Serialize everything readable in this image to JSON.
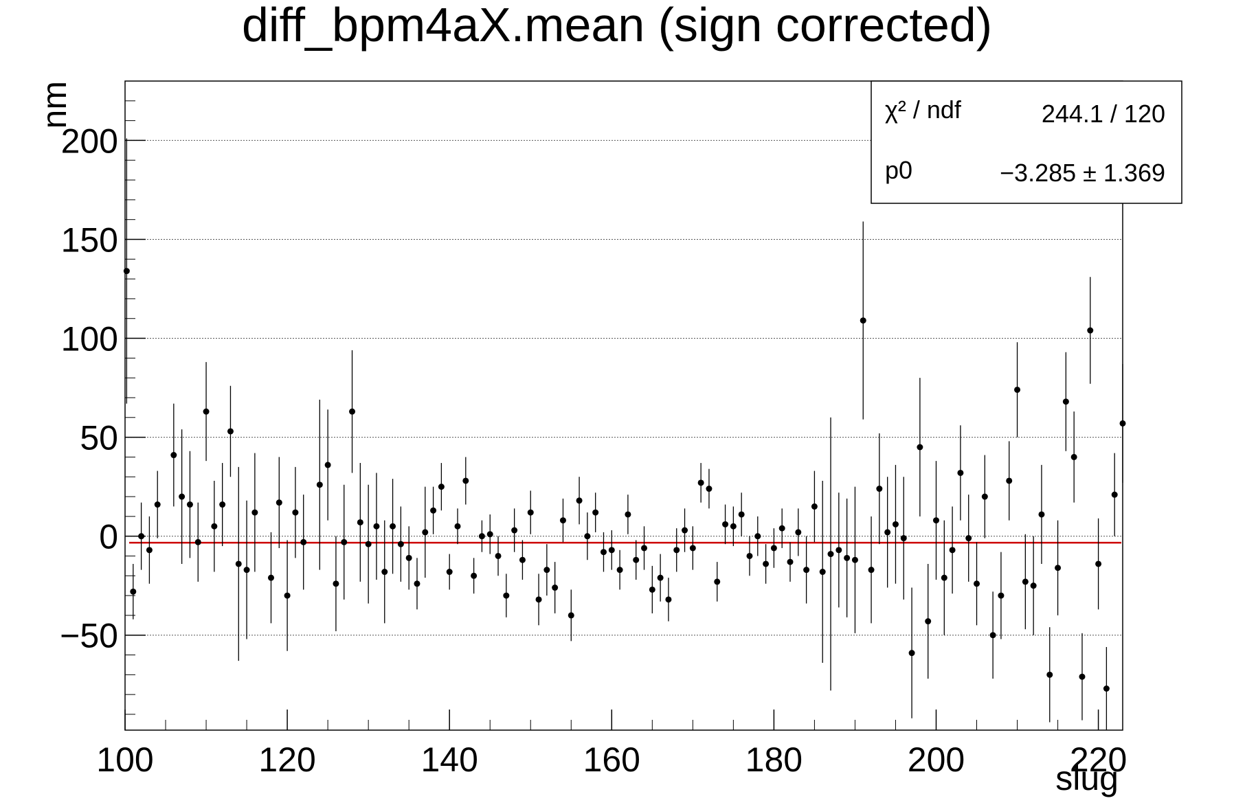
{
  "chart_data": {
    "type": "scatter",
    "title": "diff_bpm4aX.mean (sign corrected)",
    "xlabel": "slug",
    "ylabel": "nm",
    "xlim": [
      100,
      223
    ],
    "ylim": [
      -98,
      230
    ],
    "x_ticks": [
      "100",
      "120",
      "140",
      "160",
      "180",
      "200",
      "220"
    ],
    "y_ticks": [
      "−50",
      "0",
      "50",
      "100",
      "150",
      "200"
    ],
    "grid": {
      "x": false,
      "y": true
    },
    "fit": {
      "p0": -3.285,
      "color": "#cc0000"
    },
    "stats_box": {
      "placement": "top-right",
      "rows": [
        {
          "label": "χ² / ndf",
          "value": "244.1 / 120"
        },
        {
          "label": "p0",
          "value": "−3.285 ± 1.369"
        }
      ]
    },
    "points": [
      [
        100.2,
        134,
        67
      ],
      [
        101,
        -28,
        14
      ],
      [
        102,
        0,
        17
      ],
      [
        103,
        -7,
        17
      ],
      [
        104,
        16,
        17
      ],
      [
        106,
        41,
        26
      ],
      [
        107,
        20,
        34
      ],
      [
        108,
        16,
        27
      ],
      [
        109,
        -3,
        20
      ],
      [
        110,
        63,
        25
      ],
      [
        111,
        5,
        23
      ],
      [
        112,
        16,
        21
      ],
      [
        113,
        53,
        23
      ],
      [
        114,
        -14,
        49
      ],
      [
        115,
        -17,
        35
      ],
      [
        116,
        12,
        30
      ],
      [
        118,
        -21,
        23
      ],
      [
        119,
        17,
        23
      ],
      [
        120,
        -30,
        28
      ],
      [
        121,
        12,
        23
      ],
      [
        122,
        -3,
        24
      ],
      [
        124,
        26,
        43
      ],
      [
        125,
        36,
        28
      ],
      [
        126,
        -24,
        24
      ],
      [
        127,
        -3,
        29
      ],
      [
        128,
        63,
        31
      ],
      [
        129,
        7,
        30
      ],
      [
        130,
        -4,
        30
      ],
      [
        131,
        5,
        27
      ],
      [
        132,
        -18,
        26
      ],
      [
        133,
        5,
        24
      ],
      [
        134,
        -4,
        19
      ],
      [
        135,
        -11,
        16
      ],
      [
        136,
        -24,
        13
      ],
      [
        137,
        2,
        23
      ],
      [
        138,
        13,
        12
      ],
      [
        139,
        25,
        12
      ],
      [
        140,
        -18,
        9
      ],
      [
        141,
        5,
        9
      ],
      [
        142,
        28,
        12
      ],
      [
        143,
        -20,
        9
      ],
      [
        144,
        0,
        8
      ],
      [
        145,
        1,
        10
      ],
      [
        146,
        -10,
        10
      ],
      [
        147,
        -30,
        11
      ],
      [
        148,
        3,
        11
      ],
      [
        149,
        -12,
        10
      ],
      [
        150,
        12,
        11
      ],
      [
        151,
        -32,
        13
      ],
      [
        152,
        -17,
        13
      ],
      [
        153,
        -26,
        13
      ],
      [
        154,
        8,
        11
      ],
      [
        155,
        -40,
        13
      ],
      [
        156,
        18,
        12
      ],
      [
        157,
        0,
        12
      ],
      [
        158,
        12,
        10
      ],
      [
        159,
        -8,
        10
      ],
      [
        160,
        -7,
        10
      ],
      [
        161,
        -17,
        10
      ],
      [
        162,
        11,
        10
      ],
      [
        163,
        -12,
        10
      ],
      [
        164,
        -6,
        11
      ],
      [
        165,
        -27,
        12
      ],
      [
        166,
        -21,
        12
      ],
      [
        167,
        -32,
        11
      ],
      [
        168,
        -7,
        11
      ],
      [
        169,
        3,
        11
      ],
      [
        170,
        -6,
        11
      ],
      [
        171,
        27,
        10
      ],
      [
        172,
        24,
        10
      ],
      [
        173,
        -23,
        10
      ],
      [
        174,
        6,
        10
      ],
      [
        175,
        5,
        10
      ],
      [
        176,
        11,
        11
      ],
      [
        177,
        -10,
        10
      ],
      [
        178,
        0,
        10
      ],
      [
        179,
        -14,
        10
      ],
      [
        180,
        -6,
        10
      ],
      [
        181,
        4,
        10
      ],
      [
        182,
        -13,
        10
      ],
      [
        183,
        2,
        12
      ],
      [
        184,
        -17,
        17
      ],
      [
        185,
        15,
        18
      ],
      [
        186,
        -18,
        46
      ],
      [
        187,
        -9,
        69
      ],
      [
        188,
        -7,
        29
      ],
      [
        189,
        -11,
        30
      ],
      [
        190,
        -12,
        37
      ],
      [
        191,
        109,
        50
      ],
      [
        192,
        -17,
        27
      ],
      [
        193,
        24,
        28
      ],
      [
        194,
        2,
        28
      ],
      [
        195,
        6,
        30
      ],
      [
        196,
        -1,
        31
      ],
      [
        197,
        -59,
        33
      ],
      [
        198,
        45,
        35
      ],
      [
        199,
        -43,
        29
      ],
      [
        200,
        8,
        30
      ],
      [
        201,
        -21,
        29
      ],
      [
        202,
        -7,
        22
      ],
      [
        203,
        32,
        24
      ],
      [
        204,
        -1,
        22
      ],
      [
        205,
        -24,
        21
      ],
      [
        206,
        20,
        21
      ],
      [
        207,
        -50,
        22
      ],
      [
        208,
        -30,
        22
      ],
      [
        209,
        28,
        20
      ],
      [
        210,
        74,
        24
      ],
      [
        211,
        -23,
        24
      ],
      [
        212,
        -25,
        25
      ],
      [
        213,
        11,
        25
      ],
      [
        214,
        -70,
        24
      ],
      [
        215,
        -16,
        24
      ],
      [
        216,
        68,
        25
      ],
      [
        217,
        40,
        23
      ],
      [
        218,
        -71,
        22
      ],
      [
        219,
        104,
        27
      ],
      [
        220,
        -14,
        23
      ],
      [
        221,
        -77,
        21
      ],
      [
        222,
        21,
        21
      ],
      [
        223,
        57,
        30
      ]
    ]
  }
}
